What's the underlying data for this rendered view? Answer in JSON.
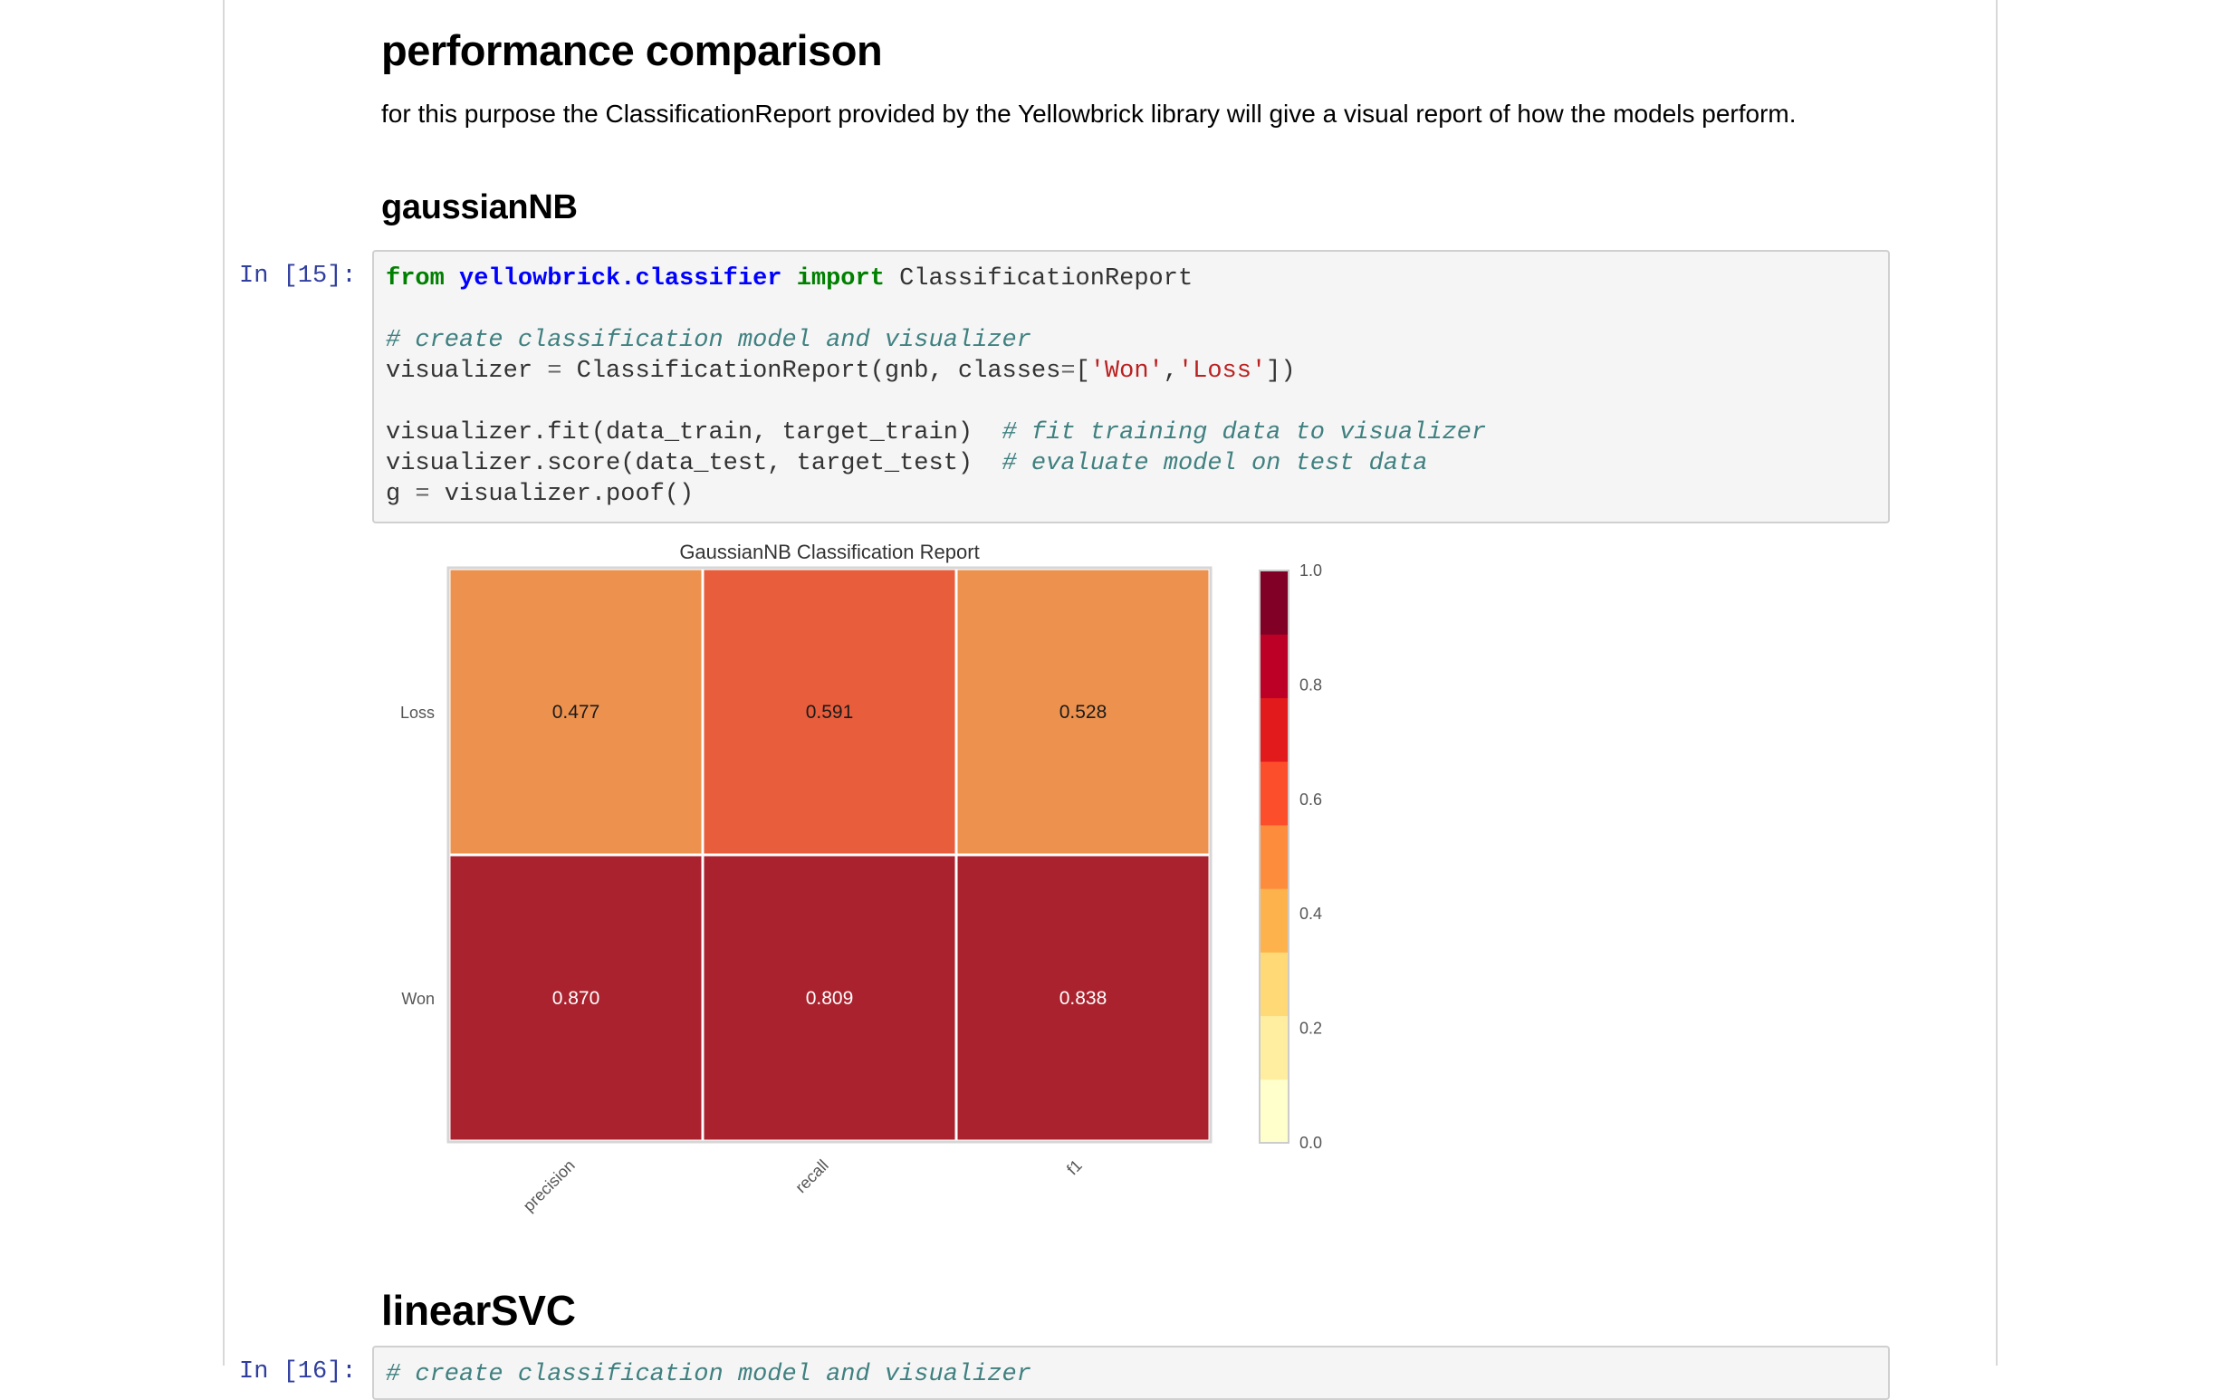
{
  "heading": "performance comparison",
  "intro": "for this purpose the ClassificationReport provided by the Yellowbrick library will give a visual report of how the models perform.",
  "sections": [
    {
      "title": "gaussianNB",
      "prompt": "In [15]:"
    },
    {
      "title": "linearSVC",
      "prompt": "In [16]:"
    }
  ],
  "code": {
    "cell1": {
      "line1": {
        "kw_from": "from",
        "module": "yellowbrick.classifier",
        "kw_import": "import",
        "name": " ClassificationReport"
      },
      "line3": "# create classification model and visualizer",
      "line4": {
        "a": "visualizer ",
        "eq": "=",
        "b": " ClassificationReport(gnb, classes",
        "eq2": "=",
        "c": "[",
        "s1": "'Won'",
        "comma": ",",
        "s2": "'Loss'",
        "d": "])"
      },
      "line6": {
        "a": "visualizer.fit(data_train, target_train)  ",
        "c": "# fit training data to visualizer"
      },
      "line7": {
        "a": "visualizer.score(data_test, target_test)  ",
        "c": "# evaluate model on test data"
      },
      "line8": {
        "a": "g ",
        "eq": "=",
        "b": " visualizer.poof()"
      }
    },
    "cell2": {
      "line1": "# create classification model and visualizer"
    }
  },
  "chart_data": {
    "type": "heatmap",
    "title": "GaussianNB Classification Report",
    "rows": [
      "Loss",
      "Won"
    ],
    "columns": [
      "precision",
      "recall",
      "f1"
    ],
    "values": [
      [
        0.477,
        0.591,
        0.528
      ],
      [
        0.87,
        0.809,
        0.838
      ]
    ],
    "value_labels": [
      [
        "0.477",
        "0.591",
        "0.528"
      ],
      [
        "0.870",
        "0.809",
        "0.838"
      ]
    ],
    "colorbar": {
      "ticks": [
        "0.0",
        "0.2",
        "0.4",
        "0.6",
        "0.8",
        "1.0"
      ],
      "range": [
        0,
        1
      ],
      "colors": [
        "#ffffcc",
        "#ffeda0",
        "#fed976",
        "#feb24c",
        "#fd8d3c",
        "#fc4e2a",
        "#e31a1c",
        "#bd0026",
        "#800026"
      ]
    },
    "colors": {
      "loss_row": [
        "#ed924e",
        "#e85d3b",
        "#ed924e"
      ],
      "won_row": "#aa222e"
    }
  }
}
